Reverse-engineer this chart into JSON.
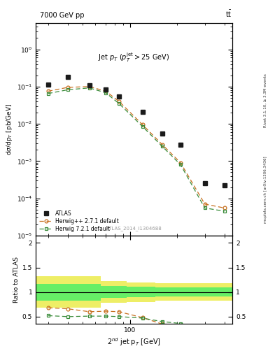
{
  "title_top": "7000 GeV pp",
  "title_top_right": "tt̅",
  "xlabel": "2$^{nd}$ jet p$_T$ [GeV]",
  "ylabel": "dσ/dp$_T$ [pb/GeV]",
  "ylabel_ratio": "Ratio to ATLAS",
  "annotation": "Jet $p_T$ ($p_T^{\\rm jet}>25$ GeV)",
  "ref_label": "ATLAS_2014_I1304688",
  "right_label1": "Rivet 3.1.10, ≥ 3.3M events",
  "right_label2": "mcplots.cern.ch [arXiv:1306.3436]",
  "atlas_x": [
    30,
    40,
    55,
    70,
    85,
    120,
    160,
    210,
    300,
    400
  ],
  "atlas_y": [
    0.115,
    0.185,
    0.11,
    0.082,
    0.055,
    0.021,
    0.0055,
    0.0028,
    0.00025,
    0.00022
  ],
  "herwig_pp_x": [
    30,
    40,
    55,
    70,
    85,
    120,
    160,
    210,
    300,
    400
  ],
  "herwig_pp_y": [
    0.075,
    0.095,
    0.1,
    0.075,
    0.04,
    0.0095,
    0.0028,
    0.0009,
    7e-05,
    5.5e-05
  ],
  "herwig7_x": [
    30,
    40,
    55,
    70,
    85,
    120,
    160,
    210,
    300,
    400
  ],
  "herwig7_y": [
    0.065,
    0.082,
    0.092,
    0.068,
    0.035,
    0.0085,
    0.0025,
    0.0008,
    5.5e-05,
    4.5e-05
  ],
  "ratio_herwig_pp_x": [
    30,
    40,
    55,
    70,
    85,
    120,
    160,
    210,
    300
  ],
  "ratio_herwig_pp_y": [
    0.68,
    0.66,
    0.6,
    0.61,
    0.6,
    0.48,
    0.35,
    0.28,
    0.2
  ],
  "ratio_herwig7_x": [
    30,
    40,
    55,
    70,
    85,
    120,
    160,
    210,
    300
  ],
  "ratio_herwig7_y": [
    0.52,
    0.5,
    0.51,
    0.51,
    0.5,
    0.47,
    0.4,
    0.36,
    0.25
  ],
  "band_edges": [
    25,
    45,
    65,
    95,
    145,
    220,
    450
  ],
  "band_green_low": [
    0.83,
    0.83,
    0.88,
    0.89,
    0.91,
    0.91,
    0.91
  ],
  "band_green_high": [
    1.17,
    1.17,
    1.12,
    1.11,
    1.09,
    1.09,
    1.09
  ],
  "band_yellow_low": [
    0.68,
    0.68,
    0.78,
    0.8,
    0.82,
    0.82,
    0.82
  ],
  "band_yellow_high": [
    1.32,
    1.32,
    1.22,
    1.2,
    1.18,
    1.18,
    1.18
  ],
  "main_ylim": [
    1e-05,
    5
  ],
  "ratio_ylim": [
    0.35,
    2.15
  ],
  "ratio_yticks": [
    0.5,
    1.0,
    1.5,
    2.0
  ],
  "xlim": [
    25,
    450
  ],
  "herwig_pp_color": "#c87020",
  "herwig7_color": "#3a8c3a",
  "atlas_color": "#1a1a1a",
  "background_color": "#ffffff",
  "green_band_color": "#66ee66",
  "yellow_band_color": "#eeee66"
}
